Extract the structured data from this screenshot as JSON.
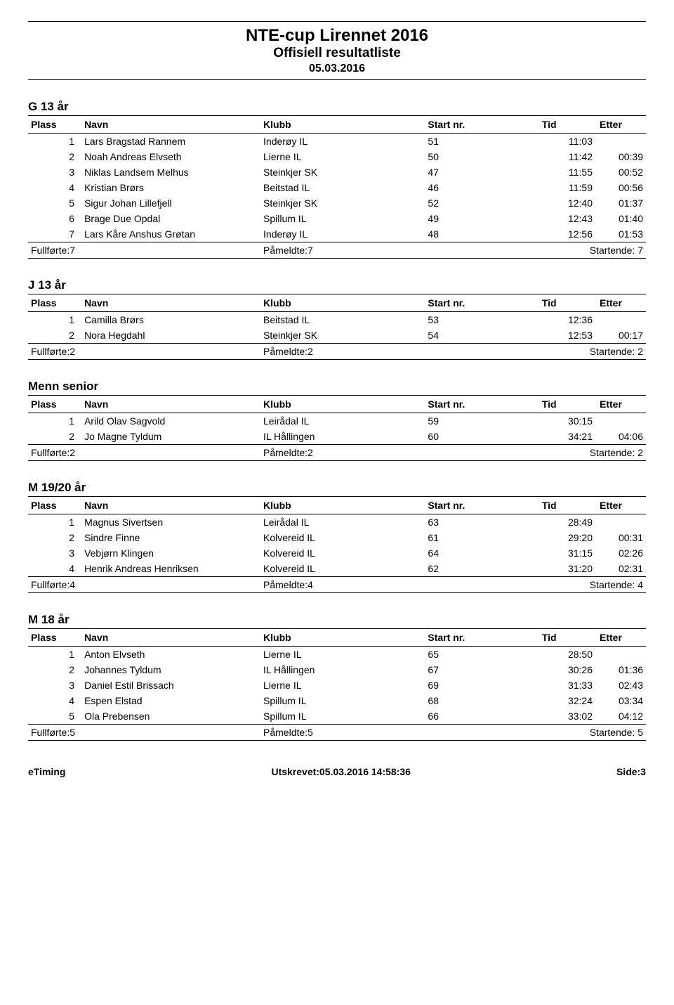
{
  "header": {
    "title": "NTE-cup Lirennet 2016",
    "subtitle": "Offisiell resultatliste",
    "date": "05.03.2016"
  },
  "columns": {
    "plass": "Plass",
    "navn": "Navn",
    "klubb": "Klubb",
    "start": "Start nr.",
    "tid": "Tid",
    "etter": "Etter"
  },
  "summary_labels": {
    "full_prefix": "Fullførte:",
    "pam_prefix": "Påmeldte:",
    "start_prefix": "Startende:"
  },
  "sections": [
    {
      "title": "G 13 år",
      "rows": [
        {
          "plass": "1",
          "navn": "Lars Bragstad Rannem",
          "klubb": "Inderøy IL",
          "start": "51",
          "tid": "11:03",
          "etter": ""
        },
        {
          "plass": "2",
          "navn": "Noah Andreas Elvseth",
          "klubb": "Lierne IL",
          "start": "50",
          "tid": "11:42",
          "etter": "00:39"
        },
        {
          "plass": "3",
          "navn": "Niklas Landsem Melhus",
          "klubb": "Steinkjer SK",
          "start": "47",
          "tid": "11:55",
          "etter": "00:52"
        },
        {
          "plass": "4",
          "navn": "Kristian Brørs",
          "klubb": "Beitstad IL",
          "start": "46",
          "tid": "11:59",
          "etter": "00:56"
        },
        {
          "plass": "5",
          "navn": "Sigur Johan Lillefjell",
          "klubb": "Steinkjer SK",
          "start": "52",
          "tid": "12:40",
          "etter": "01:37"
        },
        {
          "plass": "6",
          "navn": "Brage Due Opdal",
          "klubb": "Spillum IL",
          "start": "49",
          "tid": "12:43",
          "etter": "01:40"
        },
        {
          "plass": "7",
          "navn": "Lars Kåre Anshus Grøtan",
          "klubb": "Inderøy IL",
          "start": "48",
          "tid": "12:56",
          "etter": "01:53"
        }
      ],
      "summary": {
        "full": "7",
        "pam": "7",
        "start": "7"
      }
    },
    {
      "title": "J 13 år",
      "rows": [
        {
          "plass": "1",
          "navn": "Camilla Brørs",
          "klubb": "Beitstad IL",
          "start": "53",
          "tid": "12:36",
          "etter": ""
        },
        {
          "plass": "2",
          "navn": "Nora Hegdahl",
          "klubb": "Steinkjer SK",
          "start": "54",
          "tid": "12:53",
          "etter": "00:17"
        }
      ],
      "summary": {
        "full": "2",
        "pam": "2",
        "start": "2"
      }
    },
    {
      "title": "Menn senior",
      "rows": [
        {
          "plass": "1",
          "navn": "Arild Olav Sagvold",
          "klubb": "Leirådal IL",
          "start": "59",
          "tid": "30:15",
          "etter": ""
        },
        {
          "plass": "2",
          "navn": "Jo Magne Tyldum",
          "klubb": "IL Hållingen",
          "start": "60",
          "tid": "34:21",
          "etter": "04:06"
        }
      ],
      "summary": {
        "full": "2",
        "pam": "2",
        "start": "2"
      }
    },
    {
      "title": "M 19/20 år",
      "rows": [
        {
          "plass": "1",
          "navn": "Magnus Sivertsen",
          "klubb": "Leirådal IL",
          "start": "63",
          "tid": "28:49",
          "etter": ""
        },
        {
          "plass": "2",
          "navn": "Sindre Finne",
          "klubb": "Kolvereid IL",
          "start": "61",
          "tid": "29:20",
          "etter": "00:31"
        },
        {
          "plass": "3",
          "navn": "Vebjørn Klingen",
          "klubb": "Kolvereid IL",
          "start": "64",
          "tid": "31:15",
          "etter": "02:26"
        },
        {
          "plass": "4",
          "navn": "Henrik Andreas Henriksen",
          "klubb": "Kolvereid IL",
          "start": "62",
          "tid": "31:20",
          "etter": "02:31"
        }
      ],
      "summary": {
        "full": "4",
        "pam": "4",
        "start": "4"
      }
    },
    {
      "title": "M 18 år",
      "rows": [
        {
          "plass": "1",
          "navn": "Anton Elvseth",
          "klubb": "Lierne IL",
          "start": "65",
          "tid": "28:50",
          "etter": ""
        },
        {
          "plass": "2",
          "navn": "Johannes Tyldum",
          "klubb": "IL Hållingen",
          "start": "67",
          "tid": "30:26",
          "etter": "01:36"
        },
        {
          "plass": "3",
          "navn": "Daniel Estil Brissach",
          "klubb": "Lierne IL",
          "start": "69",
          "tid": "31:33",
          "etter": "02:43"
        },
        {
          "plass": "4",
          "navn": "Espen Elstad",
          "klubb": "Spillum IL",
          "start": "68",
          "tid": "32:24",
          "etter": "03:34"
        },
        {
          "plass": "5",
          "navn": "Ola Prebensen",
          "klubb": "Spillum IL",
          "start": "66",
          "tid": "33:02",
          "etter": "04:12"
        }
      ],
      "summary": {
        "full": "5",
        "pam": "5",
        "start": "5"
      }
    }
  ],
  "footer": {
    "left": "eTiming",
    "center": "Utskrevet:05.03.2016 14:58:36",
    "right": "Side:3"
  }
}
